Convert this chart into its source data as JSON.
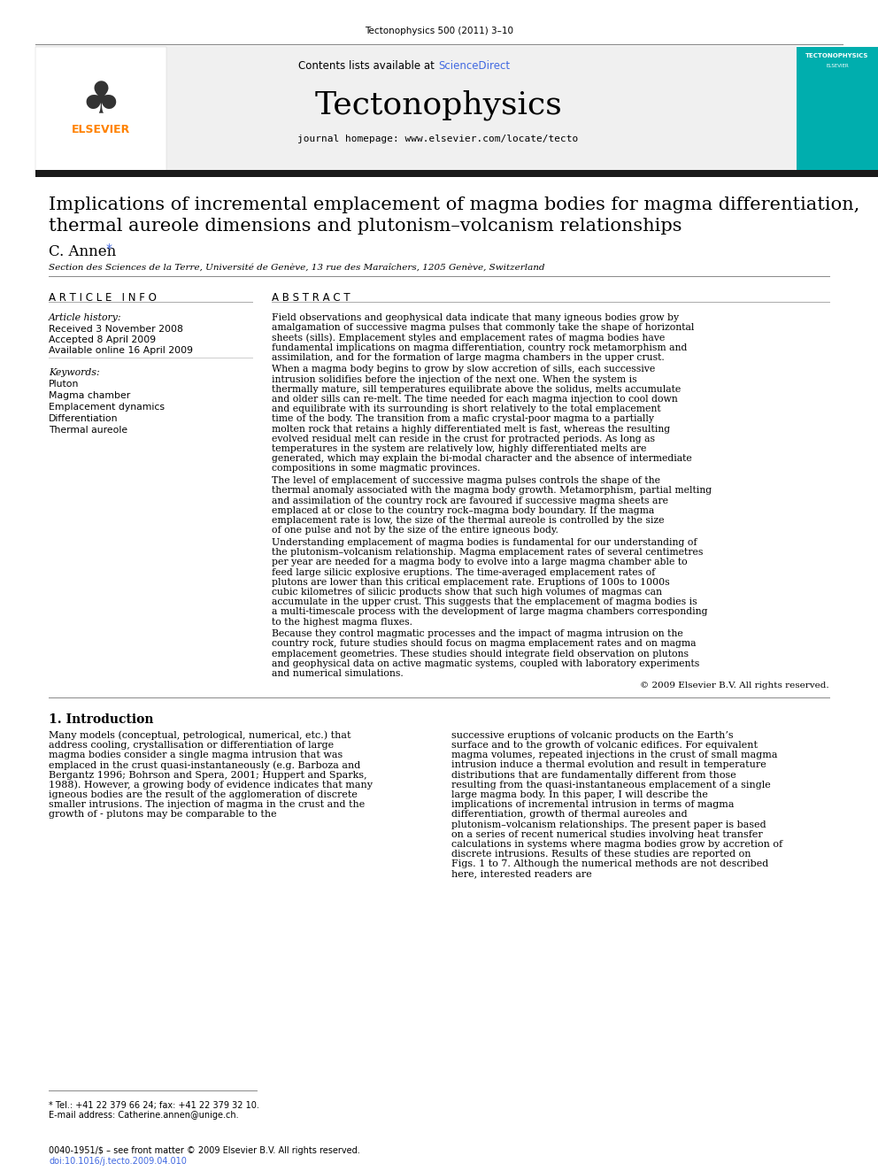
{
  "journal_ref": "Tectonophysics 500 (2011) 3–10",
  "contents_text": "Contents lists available at ",
  "sciencedirect_text": "ScienceDirect",
  "journal_name": "Tectonophysics",
  "homepage_text": "journal homepage: www.elsevier.com/locate/tecto",
  "title_line1": "Implications of incremental emplacement of magma bodies for magma differentiation,",
  "title_line2": "thermal aureole dimensions and plutonism–volcanism relationships",
  "author": "C. Annen",
  "affiliation": "Section des Sciences de la Terre, Université de Genève, 13 rue des Maraîchers, 1205 Genève, Switzerland",
  "article_info_header": "A R T I C L E   I N F O",
  "abstract_header": "A B S T R A C T",
  "article_history_label": "Article history:",
  "received": "Received 3 November 2008",
  "accepted": "Accepted 8 April 2009",
  "available": "Available online 16 April 2009",
  "keywords_label": "Keywords:",
  "keywords": [
    "Pluton",
    "Magma chamber",
    "Emplacement dynamics",
    "Differentiation",
    "Thermal aureole"
  ],
  "abstract_text": "Field observations and geophysical data indicate that many igneous bodies grow by amalgamation of successive magma pulses that commonly take the shape of horizontal sheets (sills). Emplacement styles and emplacement rates of magma bodies have fundamental implications on magma differentiation, country rock metamorphism and assimilation, and for the formation of large magma chambers in the upper crust.\nWhen a magma body begins to grow by slow accretion of sills, each successive intrusion solidifies before the injection of the next one. When the system is thermally mature, sill temperatures equilibrate above the solidus, melts accumulate and older sills can re-melt. The time needed for each magma injection to cool down and equilibrate with its surrounding is short relatively to the total emplacement time of the body. The transition from a mafic crystal-poor magma to a partially molten rock that retains a highly differentiated melt is fast, whereas the resulting evolved residual melt can reside in the crust for protracted periods. As long as temperatures in the system are relatively low, highly differentiated melts are generated, which may explain the bi-modal character and the absence of intermediate compositions in some magmatic provinces.\nThe level of emplacement of successive magma pulses controls the shape of the thermal anomaly associated with the magma body growth. Metamorphism, partial melting and assimilation of the country rock are favoured if successive magma sheets are emplaced at or close to the country rock–magma body boundary. If the magma emplacement rate is low, the size of the thermal aureole is controlled by the size of one pulse and not by the size of the entire igneous body.\nUnderstanding emplacement of magma bodies is fundamental for our understanding of the plutonism–volcanism relationship. Magma emplacement rates of several centimetres per year are needed for a magma body to evolve into a large magma chamber able to feed large silicic explosive eruptions. The time-averaged emplacement rates of plutons are lower than this critical emplacement rate. Eruptions of 100s to 1000s cubic kilometres of silicic products show that such high volumes of magmas can accumulate in the upper crust. This suggests that the emplacement of magma bodies is a multi-timescale process with the development of large magma chambers corresponding to the highest magma fluxes.\nBecause they control magmatic processes and the impact of magma intrusion on the country rock, future studies should focus on magma emplacement rates and on magma emplacement geometries. These studies should integrate field observation on plutons and geophysical data on active magmatic systems, coupled with laboratory experiments and numerical simulations.",
  "copyright_abstract": "© 2009 Elsevier B.V. All rights reserved.",
  "intro_header": "1. Introduction",
  "intro_text1": "Many models (conceptual, petrological, numerical, etc.) that address cooling, crystallisation or differentiation of large magma bodies consider a single magma intrusion that was emplaced in the crust quasi-instantaneously (e.g. Barboza and Bergantz 1996; Bohrson and Spera, 2001; Huppert and Sparks, 1988). However, a growing body of evidence indicates that many igneous bodies are the result of the agglomeration of discrete smaller intrusions. The injection of magma in the crust and the growth of - plutons may be comparable to the",
  "intro_text2": "successive eruptions of volcanic products on the Earth’s surface and to the growth of volcanic edifices. For equivalent magma volumes, repeated injections in the crust of small magma intrusion induce a thermal evolution and result in temperature distributions that are fundamentally different from those resulting from the quasi-instantaneous emplacement of a single large magma body. In this paper, I will describe the implications of incremental intrusion in terms of magma differentiation, growth of thermal aureoles and plutonism–volcanism relationships. The present paper is based on a series of recent numerical studies involving heat transfer calculations in systems where magma bodies grow by accretion of discrete intrusions. Results of these studies are reported on Figs. 1 to 7. Although the numerical methods are not described here, interested readers are",
  "footnote_tel": "* Tel.: +41 22 379 66 24; fax: +41 22 379 32 10.",
  "footnote_email": "E-mail address: Catherine.annen@unige.ch.",
  "footer_text": "0040-1951/$ – see front matter © 2009 Elsevier B.V. All rights reserved.",
  "footer_doi": "doi:10.1016/j.tecto.2009.04.010",
  "bg_color": "#ffffff",
  "header_bg": "#f0f0f0",
  "teal_color": "#00AEAE",
  "elsevier_orange": "#FF8200",
  "link_color": "#4169E1",
  "dark_bar_color": "#1a1a1a"
}
